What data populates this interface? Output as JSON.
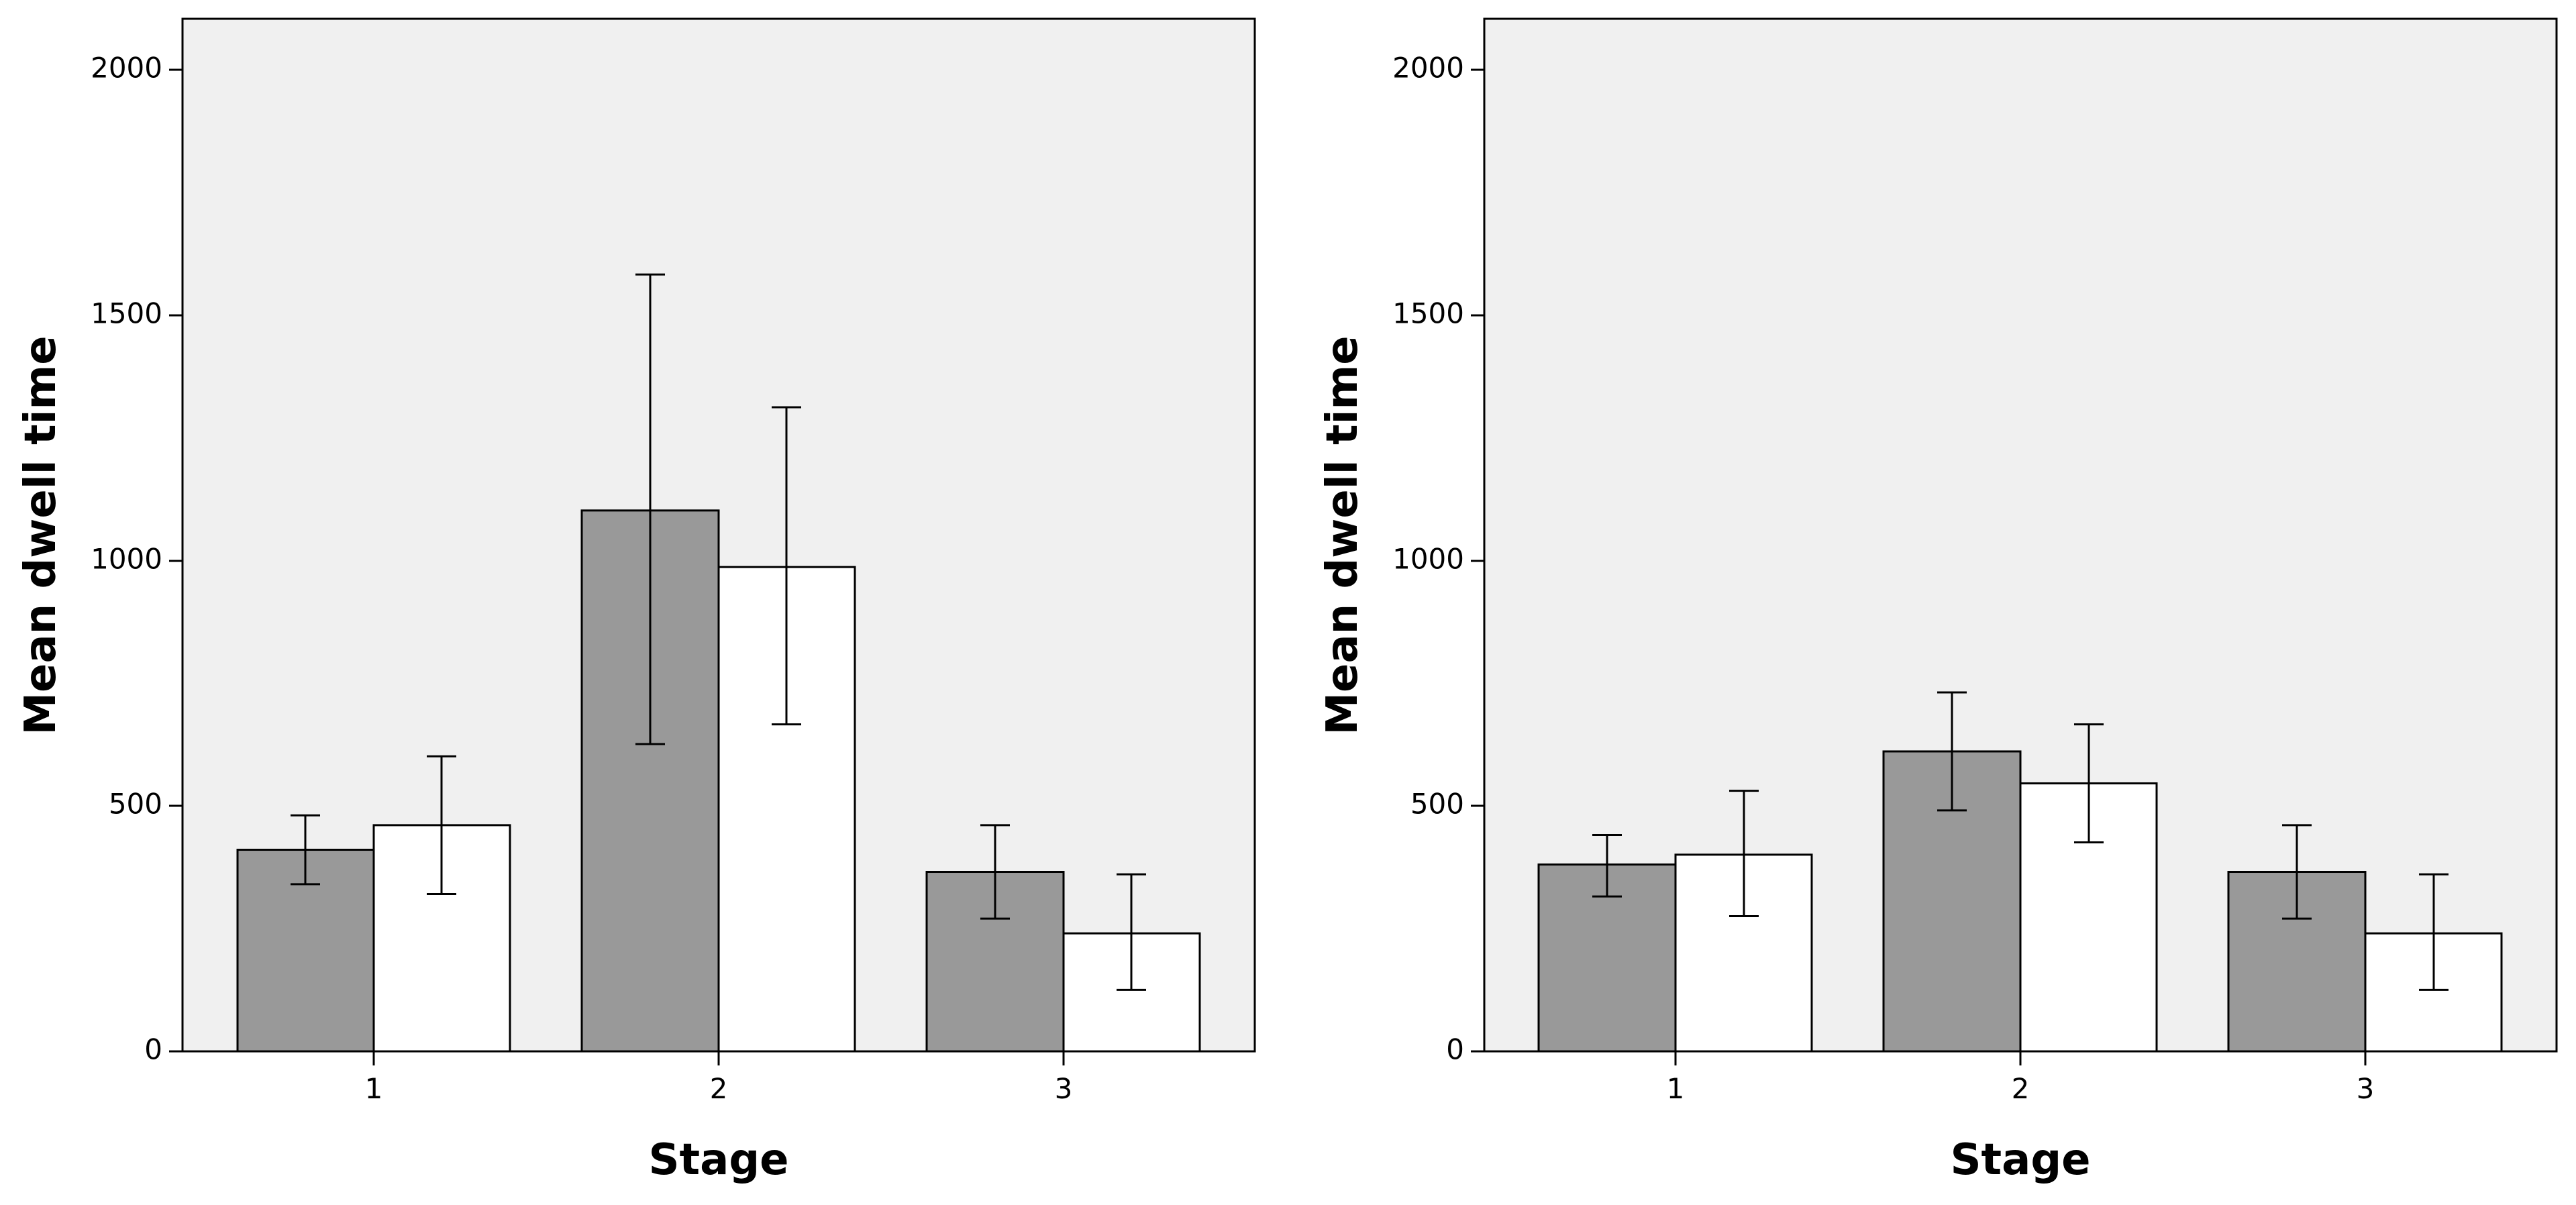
{
  "colors": {
    "plot_background": "#f0f0f0",
    "series_filled": "#999999",
    "series_open": "#ffffff",
    "outline": "#000000"
  },
  "chart_data": [
    {
      "type": "bar",
      "title": "",
      "xlabel": "Stage",
      "ylabel": "Mean dwell time",
      "categories": [
        "1",
        "2",
        "3"
      ],
      "ylim": [
        0,
        2100
      ],
      "yticks": [
        "0",
        "500",
        "1000",
        "1500",
        "2000"
      ],
      "ytick_values": [
        0,
        500,
        1000,
        1500,
        2000
      ],
      "grid": false,
      "legend": "none",
      "series": [
        {
          "color": "#999999",
          "values": [
            410,
            1100,
            365
          ],
          "error_low": [
            340,
            625,
            270
          ],
          "error_high": [
            480,
            1580,
            460
          ]
        },
        {
          "color": "#ffffff",
          "values": [
            460,
            985,
            240
          ],
          "error_low": [
            320,
            665,
            125
          ],
          "error_high": [
            600,
            1310,
            360
          ]
        }
      ]
    },
    {
      "type": "bar",
      "title": "",
      "xlabel": "Stage",
      "ylabel": "Mean dwell time",
      "categories": [
        "1",
        "2",
        "3"
      ],
      "ylim": [
        0,
        2100
      ],
      "yticks": [
        "0",
        "500",
        "1000",
        "1500",
        "2000"
      ],
      "ytick_values": [
        0,
        500,
        1000,
        1500,
        2000
      ],
      "grid": false,
      "legend": "none",
      "series": [
        {
          "color": "#999999",
          "values": [
            380,
            610,
            365
          ],
          "error_low": [
            315,
            490,
            270
          ],
          "error_high": [
            440,
            730,
            460
          ]
        },
        {
          "color": "#ffffff",
          "values": [
            400,
            545,
            240
          ],
          "error_low": [
            275,
            425,
            125
          ],
          "error_high": [
            530,
            665,
            360
          ]
        }
      ]
    }
  ]
}
